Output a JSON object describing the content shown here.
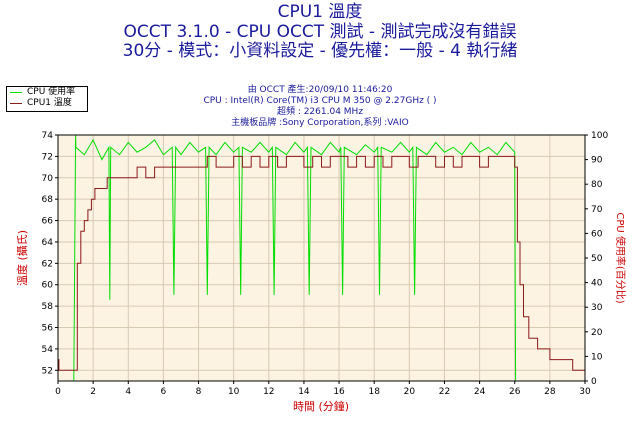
{
  "chart_data": {
    "type": "line",
    "title": "CPU1 溫度",
    "subtitle_lines": [
      "OCCT 3.1.0 - CPU OCCT 測試 - 測試完成沒有錯誤",
      "30分 - 模式：小資料設定 - 優先權：一般 - 4 執行緒"
    ],
    "info_lines": [
      "由 OCCT 產生:20/09/10 11:46:20",
      "CPU : Intel(R) Core(TM) i3 CPU M 350 @ 2.27GHz ( )",
      "超頻 : 2261.04 MHz",
      "主機板品牌 :Sony Corporation,系列 :VAIO"
    ],
    "xlabel": "時間 (分鐘)",
    "ylabel_left": "溫度 (攝氏)",
    "ylabel_right": "CPU 使用率(百分比)",
    "xlim": [
      0,
      30
    ],
    "ylim_left": [
      51,
      74
    ],
    "ylim_right": [
      0,
      100
    ],
    "x_ticks": [
      0,
      2,
      4,
      6,
      8,
      10,
      12,
      14,
      16,
      18,
      20,
      22,
      24,
      26,
      28,
      30
    ],
    "y_ticks_left": [
      52,
      54,
      56,
      58,
      60,
      62,
      64,
      66,
      68,
      70,
      72,
      74
    ],
    "y_ticks_right": [
      0,
      10,
      20,
      30,
      40,
      50,
      60,
      70,
      80,
      90,
      100
    ],
    "grid": true,
    "legend_position": "top-left outside",
    "series": [
      {
        "name": "CPU 使用率",
        "axis": "right",
        "color": "#00dd00",
        "x": [
          0,
          0.9,
          1.0,
          1.02,
          1.5,
          2.0,
          2.5,
          2.9,
          2.95,
          3.0,
          3.5,
          4.0,
          4.5,
          5.0,
          5.5,
          6.0,
          6.5,
          6.6,
          6.7,
          7.0,
          7.5,
          8.0,
          8.4,
          8.5,
          8.6,
          9.0,
          9.5,
          10.0,
          10.3,
          10.4,
          10.5,
          11.0,
          11.5,
          12.0,
          12.2,
          12.3,
          12.4,
          13.0,
          13.5,
          14.0,
          14.2,
          14.3,
          14.4,
          15.0,
          15.5,
          16.0,
          16.1,
          16.2,
          16.3,
          17.0,
          17.5,
          18.0,
          18.2,
          18.3,
          18.4,
          19.0,
          19.5,
          20.0,
          20.2,
          20.3,
          20.4,
          21.0,
          21.5,
          22.0,
          22.5,
          23.0,
          23.5,
          24.0,
          24.5,
          25.0,
          25.5,
          26.0,
          26.05,
          26.1,
          30
        ],
        "values": [
          0,
          0,
          100,
          95,
          92,
          98,
          90,
          95,
          33,
          95,
          92,
          97,
          93,
          95,
          98,
          92,
          95,
          35,
          95,
          92,
          97,
          93,
          95,
          35,
          95,
          92,
          97,
          93,
          95,
          35,
          95,
          93,
          97,
          93,
          95,
          35,
          95,
          92,
          97,
          93,
          95,
          35,
          95,
          92,
          97,
          93,
          95,
          35,
          95,
          92,
          96,
          93,
          95,
          35,
          95,
          93,
          97,
          93,
          95,
          35,
          95,
          92,
          97,
          93,
          95,
          92,
          97,
          93,
          95,
          92,
          97,
          93,
          0,
          0,
          0
        ]
      },
      {
        "name": "CPU1 溫度",
        "axis": "left",
        "color": "#8b1a1a",
        "x": [
          0,
          0.05,
          0.15,
          1.0,
          1.1,
          1.3,
          1.5,
          1.7,
          1.9,
          2.1,
          2.3,
          2.5,
          2.8,
          3.0,
          3.3,
          3.6,
          4.0,
          4.5,
          5.0,
          5.5,
          6.0,
          6.5,
          7.0,
          7.5,
          8.0,
          8.5,
          9.0,
          9.5,
          10.0,
          10.5,
          11.0,
          11.5,
          12.0,
          12.5,
          13.0,
          13.5,
          14.0,
          14.5,
          15.0,
          15.5,
          16.0,
          16.5,
          17.0,
          17.5,
          18.0,
          18.5,
          19.0,
          19.5,
          20.0,
          20.5,
          21.0,
          21.5,
          22.0,
          22.5,
          23.0,
          23.5,
          24.0,
          24.5,
          25.0,
          25.5,
          25.9,
          26.0,
          26.15,
          26.3,
          26.5,
          26.8,
          27.0,
          27.3,
          27.6,
          28.0,
          28.3,
          28.6,
          29.0,
          29.3,
          29.6,
          30
        ],
        "values": [
          53,
          52,
          52,
          52,
          62,
          65,
          66,
          67,
          68,
          69,
          69,
          69,
          70,
          70,
          70,
          70,
          70,
          71,
          70,
          71,
          71,
          71,
          71,
          71,
          71,
          72,
          71,
          71,
          72,
          71,
          72,
          71,
          72,
          71,
          72,
          72,
          71,
          72,
          71,
          72,
          72,
          71,
          72,
          71,
          72,
          71,
          72,
          72,
          71,
          72,
          72,
          71,
          72,
          71,
          72,
          72,
          71,
          72,
          72,
          72,
          72,
          71,
          64,
          60,
          57,
          55,
          55,
          54,
          54,
          53,
          53,
          53,
          53,
          52,
          52,
          52
        ]
      }
    ]
  }
}
